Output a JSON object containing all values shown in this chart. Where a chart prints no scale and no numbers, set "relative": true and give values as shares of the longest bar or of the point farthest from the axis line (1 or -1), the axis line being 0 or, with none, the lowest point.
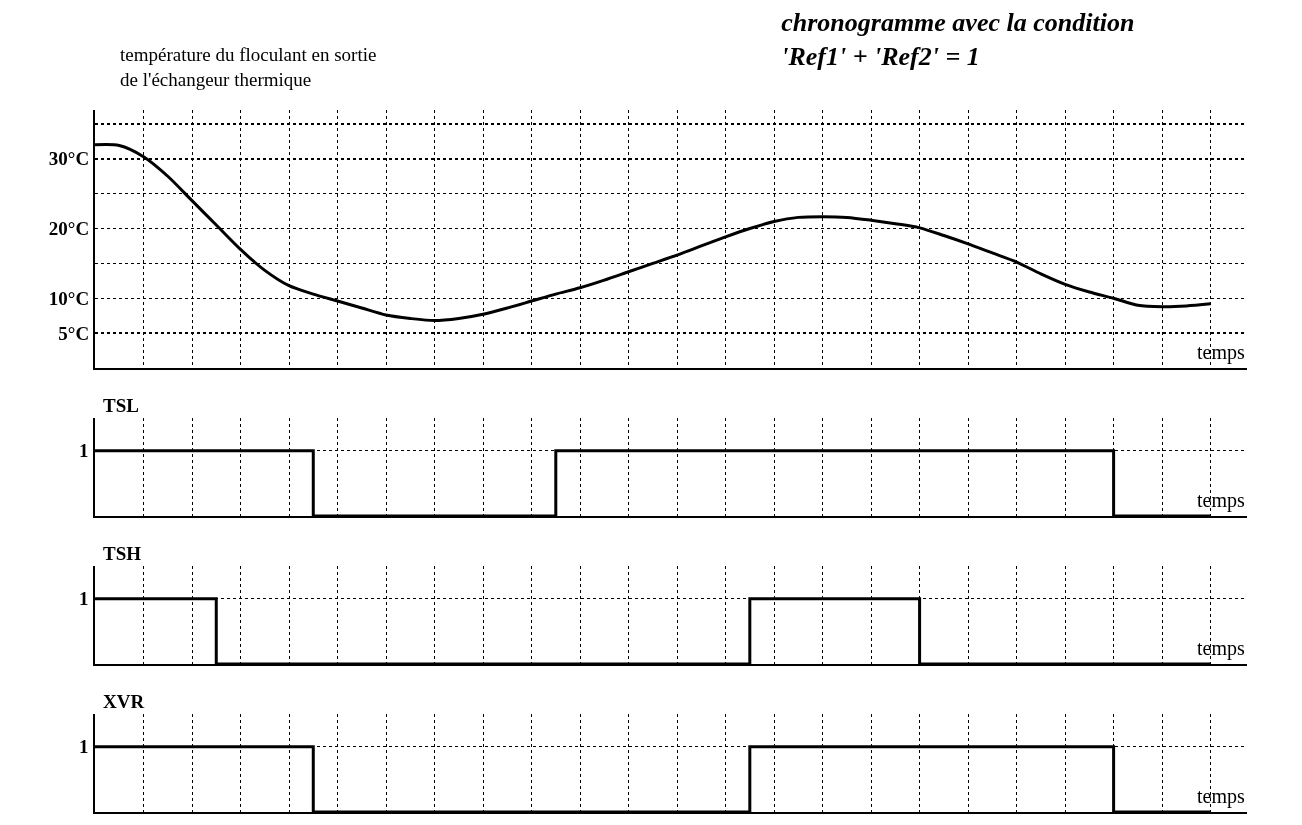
{
  "chart_data": [
    {
      "type": "line",
      "title": "chronogramme avec la condition 'Ref1' + 'Ref2' = 1",
      "ylabel": "température du floculant en sortie de l'échangeur thermique",
      "xlabel": "temps",
      "categories": [
        null,
        null,
        null,
        null,
        null,
        null,
        null,
        null,
        null,
        null,
        null,
        null,
        null,
        null,
        null,
        null,
        null,
        null,
        null,
        null,
        null,
        null,
        null,
        null,
        null,
        null,
        null,
        null,
        null,
        null,
        null,
        null,
        null,
        null,
        null,
        null,
        null,
        null,
        null,
        null,
        null,
        null,
        null,
        null,
        null,
        null,
        null
      ],
      "values": [
        32,
        31.9,
        30.3,
        27.5,
        24,
        20.5,
        17,
        14,
        11.8,
        10.6,
        9.6,
        8.6,
        7.6,
        7.1,
        6.8,
        7.1,
        7.7,
        8.6,
        9.6,
        10.6,
        11.5,
        12.6,
        13.8,
        15,
        16.2,
        17.5,
        18.8,
        20,
        21,
        21.6,
        21.7,
        21.6,
        21.2,
        20.7,
        20.1,
        19,
        17.8,
        16.5,
        15.2,
        13.5,
        12,
        10.9,
        10,
        9,
        8.8,
        8.9,
        9.2
      ],
      "color": "#000000",
      "ylim": [
        0,
        37
      ],
      "yticks": [
        {
          "value": 5,
          "label": "5°C"
        },
        {
          "value": 10,
          "label": "10°C"
        },
        {
          "value": 15,
          "label": null
        },
        {
          "value": 20,
          "label": "20°C"
        },
        {
          "value": 25,
          "label": null
        },
        {
          "value": 30,
          "label": "30°C"
        },
        {
          "value": 35,
          "label": null
        }
      ],
      "grid": true,
      "tick_labels": "y"
    },
    {
      "type": "step",
      "ylabel": "TSL",
      "xlabel": "temps",
      "categories": [
        null,
        null,
        null,
        null,
        null,
        null,
        null,
        null,
        null,
        null,
        null,
        null,
        null,
        null,
        null,
        null,
        null,
        null,
        null,
        null,
        null,
        null,
        null,
        null,
        null,
        null,
        null,
        null,
        null,
        null,
        null,
        null,
        null,
        null,
        null,
        null,
        null,
        null,
        null,
        null,
        null,
        null,
        null,
        null,
        null,
        null,
        null
      ],
      "values": [
        1,
        1,
        1,
        1,
        1,
        1,
        1,
        1,
        1,
        0,
        0,
        0,
        0,
        0,
        0,
        0,
        0,
        0,
        0,
        1,
        1,
        1,
        1,
        1,
        1,
        1,
        1,
        1,
        1,
        1,
        1,
        1,
        1,
        1,
        1,
        1,
        1,
        1,
        1,
        1,
        1,
        1,
        0,
        0,
        0,
        0,
        0
      ],
      "color": "#000000",
      "relative": true,
      "annotations": [
        "1"
      ],
      "grid": true,
      "tick_labels": false
    },
    {
      "type": "step",
      "ylabel": "TSH",
      "xlabel": "temps",
      "categories": [
        null,
        null,
        null,
        null,
        null,
        null,
        null,
        null,
        null,
        null,
        null,
        null,
        null,
        null,
        null,
        null,
        null,
        null,
        null,
        null,
        null,
        null,
        null,
        null,
        null,
        null,
        null,
        null,
        null,
        null,
        null,
        null,
        null,
        null,
        null,
        null,
        null,
        null,
        null,
        null,
        null,
        null,
        null,
        null,
        null,
        null,
        null
      ],
      "values": [
        1,
        1,
        1,
        1,
        1,
        0,
        0,
        0,
        0,
        0,
        0,
        0,
        0,
        0,
        0,
        0,
        0,
        0,
        0,
        0,
        0,
        0,
        0,
        0,
        0,
        0,
        0,
        1,
        1,
        1,
        1,
        1,
        1,
        1,
        0,
        0,
        0,
        0,
        0,
        0,
        0,
        0,
        0,
        0,
        0,
        0,
        0
      ],
      "color": "#000000",
      "relative": true,
      "annotations": [
        "1"
      ],
      "grid": true,
      "tick_labels": false
    },
    {
      "type": "step",
      "ylabel": "XVR",
      "xlabel": "temps",
      "categories": [
        null,
        null,
        null,
        null,
        null,
        null,
        null,
        null,
        null,
        null,
        null,
        null,
        null,
        null,
        null,
        null,
        null,
        null,
        null,
        null,
        null,
        null,
        null,
        null,
        null,
        null,
        null,
        null,
        null,
        null,
        null,
        null,
        null,
        null,
        null,
        null,
        null,
        null,
        null,
        null,
        null,
        null,
        null,
        null,
        null,
        null,
        null
      ],
      "values": [
        1,
        1,
        1,
        1,
        1,
        1,
        1,
        1,
        1,
        0,
        0,
        0,
        0,
        0,
        0,
        0,
        0,
        0,
        0,
        0,
        0,
        0,
        0,
        0,
        0,
        0,
        0,
        1,
        1,
        1,
        1,
        1,
        1,
        1,
        1,
        1,
        1,
        1,
        1,
        1,
        1,
        1,
        0,
        0,
        0,
        0,
        0
      ],
      "color": "#000000",
      "relative": true,
      "annotations": [
        "1"
      ],
      "grid": true,
      "tick_labels": false
    }
  ]
}
